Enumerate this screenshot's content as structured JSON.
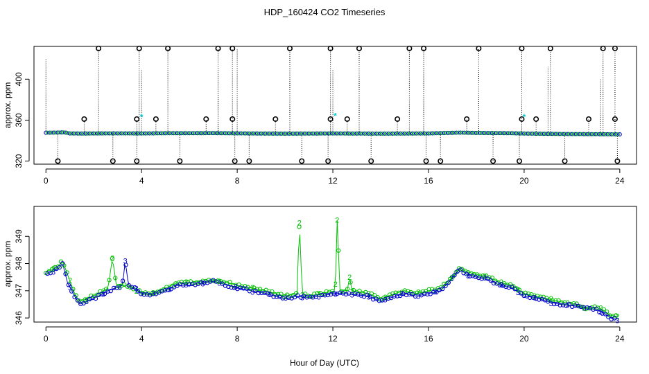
{
  "figure_title": "HDP_160424  CO2 Timeseries",
  "xlabel": "Hour of Day (UTC)",
  "colors": {
    "series1": "#00c000",
    "series2": "#0000cc",
    "cap": "#000000",
    "cyan": "#00cccc"
  },
  "chart_data": [
    {
      "type": "scatter",
      "name": "top-panel",
      "ylabel": "approx. ppm",
      "xlim": [
        -0.5,
        24.7
      ],
      "ylim": [
        317,
        432
      ],
      "xticks": [
        0,
        4,
        8,
        12,
        16,
        20,
        24
      ],
      "yticks": [
        320,
        360,
        400
      ],
      "baseline": [
        [
          0,
          347.7
        ],
        [
          0.3,
          347.8
        ],
        [
          0.8,
          348.0
        ],
        [
          1.0,
          347.0
        ],
        [
          1.5,
          346.9
        ],
        [
          2.8,
          347.1
        ],
        [
          4,
          347.0
        ],
        [
          5,
          347.2
        ],
        [
          7,
          347.3
        ],
        [
          8,
          347.1
        ],
        [
          9,
          346.9
        ],
        [
          10,
          346.8
        ],
        [
          11,
          346.9
        ],
        [
          12,
          347.0
        ],
        [
          13,
          346.9
        ],
        [
          14,
          346.8
        ],
        [
          15,
          346.9
        ],
        [
          16,
          347.0
        ],
        [
          17.3,
          347.8
        ],
        [
          18,
          347.5
        ],
        [
          19.5,
          347.2
        ],
        [
          20,
          346.9
        ],
        [
          21,
          346.6
        ],
        [
          22,
          346.4
        ],
        [
          23,
          346.3
        ],
        [
          23.9,
          346.1
        ]
      ],
      "capped_high": [
        2.2,
        3.9,
        5.1,
        7.2,
        7.8,
        10.2,
        11.9,
        13.1,
        15.2,
        15.8,
        18.1,
        19.9,
        21.1,
        23.3,
        23.8
      ],
      "capped_low": [
        0.5,
        2.8,
        3.8,
        5.6,
        7.9,
        8.5,
        10.7,
        11.8,
        13.6,
        15.9,
        16.5,
        18.7,
        19.8,
        21.7,
        23.9
      ],
      "mid_high": [
        1.6,
        3.8,
        4.6,
        6.7,
        7.8,
        9.6,
        11.9,
        12.6,
        14.7,
        17.6,
        19.9,
        20.5,
        22.7,
        23.8
      ],
      "spikes": [
        [
          0.0,
          420
        ],
        [
          4.0,
          410
        ],
        [
          8.0,
          430
        ],
        [
          10.2,
          420
        ],
        [
          12.0,
          410
        ],
        [
          15.8,
          415
        ],
        [
          21.0,
          412
        ],
        [
          7.2,
          398
        ],
        [
          13.1,
          403
        ],
        [
          23.2,
          400
        ]
      ],
      "cyan_marks": [
        [
          4.0,
          363
        ],
        [
          12.1,
          364
        ],
        [
          20.0,
          363
        ]
      ]
    },
    {
      "type": "line",
      "name": "bottom-panel",
      "ylabel": "approx. ppm",
      "xlim": [
        -0.5,
        24.7
      ],
      "ylim": [
        345.85,
        350.1
      ],
      "xticks": [
        0,
        4,
        8,
        12,
        16,
        20,
        24
      ],
      "yticks": [
        346,
        347,
        348,
        349
      ],
      "series": [
        {
          "name": "2",
          "knots": [
            [
              0,
              347.7
            ],
            [
              0.5,
              347.9
            ],
            [
              0.7,
              348.1
            ],
            [
              0.9,
              347.6
            ],
            [
              1.2,
              346.9
            ],
            [
              1.4,
              346.6
            ],
            [
              1.7,
              346.7
            ],
            [
              2.2,
              346.9
            ],
            [
              2.6,
              347.1
            ],
            [
              2.78,
              348.2
            ],
            [
              2.95,
              347.2
            ],
            [
              3.3,
              347.2
            ],
            [
              3.6,
              347.1
            ],
            [
              4.0,
              346.95
            ],
            [
              4.4,
              346.9
            ],
            [
              5.0,
              347.1
            ],
            [
              5.5,
              347.3
            ],
            [
              6.0,
              347.3
            ],
            [
              7.0,
              347.4
            ],
            [
              7.6,
              347.3
            ],
            [
              8.0,
              347.2
            ],
            [
              8.6,
              347.1
            ],
            [
              9.2,
              347.0
            ],
            [
              10.0,
              346.8
            ],
            [
              10.5,
              346.9
            ],
            [
              10.6,
              349.5
            ],
            [
              10.72,
              346.9
            ],
            [
              11.0,
              346.8
            ],
            [
              11.5,
              346.9
            ],
            [
              12.1,
              347.0
            ],
            [
              12.18,
              349.6
            ],
            [
              12.3,
              347.0
            ],
            [
              12.6,
              347.0
            ],
            [
              12.7,
              347.5
            ],
            [
              12.8,
              347.0
            ],
            [
              13.5,
              346.9
            ],
            [
              14.0,
              346.7
            ],
            [
              14.6,
              346.9
            ],
            [
              15.0,
              347.0
            ],
            [
              15.5,
              346.9
            ],
            [
              16.0,
              347.0
            ],
            [
              16.5,
              347.1
            ],
            [
              17.0,
              347.5
            ],
            [
              17.3,
              347.85
            ],
            [
              17.6,
              347.7
            ],
            [
              18.0,
              347.6
            ],
            [
              18.5,
              347.5
            ],
            [
              19.0,
              347.3
            ],
            [
              19.5,
              347.2
            ],
            [
              20.0,
              346.9
            ],
            [
              20.5,
              346.8
            ],
            [
              21.0,
              346.7
            ],
            [
              21.5,
              346.6
            ],
            [
              22.2,
              346.5
            ],
            [
              22.5,
              346.35
            ],
            [
              23.0,
              346.4
            ],
            [
              23.3,
              346.3
            ],
            [
              23.6,
              346.1
            ],
            [
              23.9,
              346.05
            ]
          ]
        },
        {
          "name": "3",
          "knots": [
            [
              0,
              347.6
            ],
            [
              0.5,
              347.8
            ],
            [
              0.7,
              348.0
            ],
            [
              0.9,
              347.3
            ],
            [
              1.2,
              346.8
            ],
            [
              1.4,
              346.5
            ],
            [
              1.7,
              346.6
            ],
            [
              2.2,
              346.8
            ],
            [
              2.6,
              347.0
            ],
            [
              2.9,
              347.1
            ],
            [
              3.2,
              347.2
            ],
            [
              3.32,
              348.1
            ],
            [
              3.45,
              347.2
            ],
            [
              3.7,
              347.1
            ],
            [
              4.0,
              346.9
            ],
            [
              4.4,
              346.85
            ],
            [
              5.0,
              347.0
            ],
            [
              5.5,
              347.2
            ],
            [
              6.0,
              347.2
            ],
            [
              7.0,
              347.35
            ],
            [
              7.6,
              347.2
            ],
            [
              8.0,
              347.1
            ],
            [
              8.6,
              347.0
            ],
            [
              9.2,
              346.9
            ],
            [
              10.0,
              346.7
            ],
            [
              10.5,
              346.8
            ],
            [
              11.0,
              346.75
            ],
            [
              11.5,
              346.8
            ],
            [
              12.0,
              346.9
            ],
            [
              12.5,
              346.9
            ],
            [
              13.0,
              346.85
            ],
            [
              13.5,
              346.8
            ],
            [
              14.0,
              346.6
            ],
            [
              14.6,
              346.8
            ],
            [
              15.0,
              346.9
            ],
            [
              15.5,
              346.8
            ],
            [
              16.0,
              346.9
            ],
            [
              16.5,
              347.0
            ],
            [
              17.0,
              347.45
            ],
            [
              17.3,
              347.8
            ],
            [
              17.6,
              347.6
            ],
            [
              18.0,
              347.5
            ],
            [
              18.5,
              347.4
            ],
            [
              19.0,
              347.2
            ],
            [
              19.5,
              347.1
            ],
            [
              20.0,
              346.8
            ],
            [
              20.5,
              346.75
            ],
            [
              21.0,
              346.6
            ],
            [
              21.5,
              346.5
            ],
            [
              22.0,
              346.45
            ],
            [
              22.5,
              346.4
            ],
            [
              23.0,
              346.3
            ],
            [
              23.3,
              346.2
            ],
            [
              23.6,
              346.0
            ],
            [
              23.9,
              345.95
            ]
          ]
        }
      ]
    }
  ]
}
